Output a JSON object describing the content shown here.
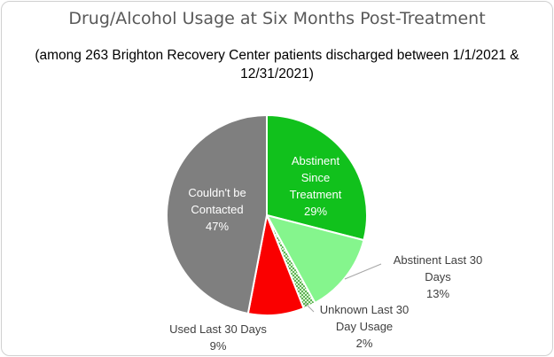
{
  "chart_data": {
    "type": "pie",
    "title": "Drug/Alcohol Usage at Six Months Post-Treatment",
    "subtitle": "(among 263 Brighton Recovery Center patients discharged between 1/1/2021 & 12/31/2021)",
    "slices": [
      {
        "name": "Abstinent Since Treatment",
        "value": 29,
        "label_lines": [
          "Abstinent",
          "Since",
          "Treatment",
          "29%"
        ],
        "color": "#11c11c",
        "pattern": "solid",
        "label_position": "inside"
      },
      {
        "name": "Abstinent Last 30 Days",
        "value": 13,
        "label_lines": [
          "Abstinent Last 30",
          "Days",
          "13%"
        ],
        "color": "#85f58d",
        "pattern": "solid",
        "label_position": "outside"
      },
      {
        "name": "Unknown Last 30 Day Usage",
        "value": 2,
        "label_lines": [
          "Unknown Last 30",
          "Day Usage",
          "2%"
        ],
        "color": "#8fdc7e",
        "pattern": "dotted",
        "label_position": "outside"
      },
      {
        "name": "Used Last 30 Days",
        "value": 9,
        "label_lines": [
          "Used Last 30 Days",
          "9%"
        ],
        "color": "#fa0000",
        "pattern": "solid",
        "label_position": "outside"
      },
      {
        "name": "Couldn't be Contacted",
        "value": 47,
        "label_lines": [
          "Couldn't be",
          "Contacted",
          "47%"
        ],
        "color": "#7f7f7f",
        "pattern": "solid",
        "label_position": "inside"
      }
    ],
    "start_angle": "12 o'clock",
    "direction": "clockwise",
    "legend": "none"
  }
}
